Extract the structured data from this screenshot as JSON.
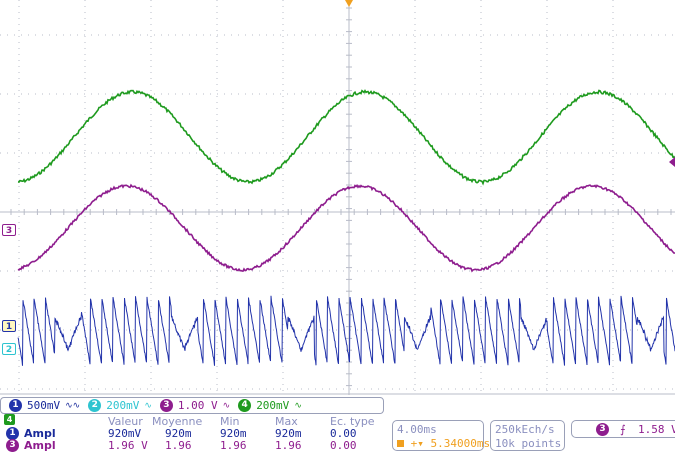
{
  "channels": [
    {
      "num": "1",
      "scale": "500mV",
      "coupling": "∿∿",
      "color": "#2233aa",
      "text_color": "#1a2a9a",
      "marker": "1"
    },
    {
      "num": "2",
      "scale": "200mV",
      "coupling": "∿",
      "color": "#2ec4d0",
      "text_color": "#2ec4d0",
      "marker": "2"
    },
    {
      "num": "3",
      "scale": "1.00 V",
      "coupling": "∿",
      "color": "#8e1d8e",
      "text_color": "#8e1d8e",
      "marker": "3"
    },
    {
      "num": "4",
      "scale": "200mV",
      "coupling": "∿",
      "color": "#1e9a1e",
      "text_color": "#1e9a1e",
      "marker": "4"
    }
  ],
  "measurements": {
    "headers": [
      "Valeur",
      "Moyenne",
      "Min",
      "Max",
      "Ec. type"
    ],
    "rows": [
      {
        "badge": "1",
        "label": "Ampl",
        "values": [
          "920mV",
          "920m",
          "920m",
          "920m",
          "0.00"
        ],
        "color": "#1a2a9a"
      },
      {
        "badge": "3",
        "label": "Ampl",
        "values": [
          "1.96 V",
          "1.96",
          "1.96",
          "1.96",
          "0.00"
        ],
        "color": "#8e1d8e"
      }
    ]
  },
  "timebase": {
    "scale": "4.00ms",
    "delay": "5.34000ms",
    "delay_prefix": "+▾"
  },
  "acquisition": {
    "rate": "250kEch/s",
    "points": "10k points"
  },
  "trigger": {
    "channel": "3",
    "slope": "⨍",
    "level": "1.58 V"
  },
  "colors": {
    "grid": "#b8bcc8",
    "trigger_marker": "#f0a020",
    "frame": "#9aa0b8"
  }
}
